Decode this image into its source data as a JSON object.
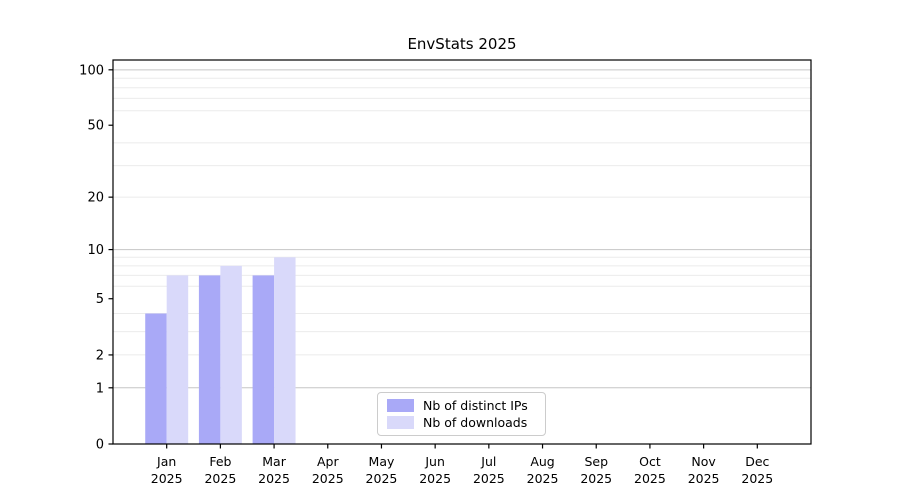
{
  "chart_data": {
    "type": "bar",
    "title": "EnvStats 2025",
    "scale": "log1p",
    "categories": [
      {
        "month": "Jan",
        "year": "2025"
      },
      {
        "month": "Feb",
        "year": "2025"
      },
      {
        "month": "Mar",
        "year": "2025"
      },
      {
        "month": "Apr",
        "year": "2025"
      },
      {
        "month": "May",
        "year": "2025"
      },
      {
        "month": "Jun",
        "year": "2025"
      },
      {
        "month": "Jul",
        "year": "2025"
      },
      {
        "month": "Aug",
        "year": "2025"
      },
      {
        "month": "Sep",
        "year": "2025"
      },
      {
        "month": "Oct",
        "year": "2025"
      },
      {
        "month": "Nov",
        "year": "2025"
      },
      {
        "month": "Dec",
        "year": "2025"
      }
    ],
    "series": [
      {
        "name": "Nb of distinct IPs",
        "color": "#a9a9f7",
        "values": [
          4,
          7,
          7,
          0,
          0,
          0,
          0,
          0,
          0,
          0,
          0,
          0
        ]
      },
      {
        "name": "Nb of downloads",
        "color": "#d9d9fa",
        "values": [
          7,
          8,
          9,
          0,
          0,
          0,
          0,
          0,
          0,
          0,
          0,
          0
        ]
      }
    ],
    "y_ticks": [
      0,
      1,
      2,
      5,
      10,
      20,
      50,
      100
    ],
    "ylim": [
      0,
      113
    ],
    "grid_major": [
      1,
      10,
      100
    ],
    "grid_minor": [
      2,
      3,
      4,
      6,
      7,
      8,
      9,
      20,
      30,
      40,
      60,
      70,
      80,
      90
    ],
    "legend_position": "lower center",
    "xlabel": "",
    "ylabel": ""
  },
  "colors": {
    "background": "#ffffff",
    "spine": "#000000",
    "text": "#000000",
    "grid_major": "#c6c6c6",
    "grid_minor": "#ebebeb",
    "legend_border": "#cccccc",
    "legend_background": "#ffffff"
  }
}
